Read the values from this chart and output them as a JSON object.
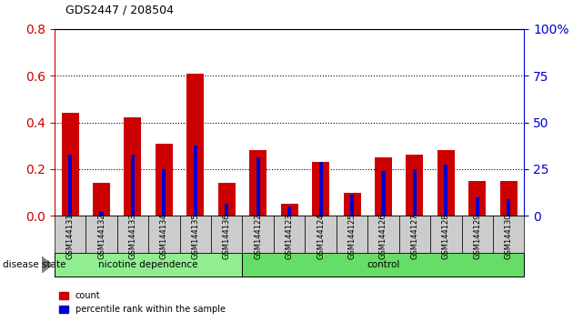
{
  "title": "GDS2447 / 208504",
  "categories": [
    "GSM144131",
    "GSM144132",
    "GSM144133",
    "GSM144134",
    "GSM144135",
    "GSM144136",
    "GSM144122",
    "GSM144123",
    "GSM144124",
    "GSM144125",
    "GSM144126",
    "GSM144127",
    "GSM144128",
    "GSM144129",
    "GSM144130"
  ],
  "count_values": [
    0.44,
    0.14,
    0.42,
    0.31,
    0.61,
    0.14,
    0.28,
    0.05,
    0.23,
    0.1,
    0.25,
    0.26,
    0.28,
    0.15,
    0.15
  ],
  "percentile_values": [
    0.26,
    0.02,
    0.26,
    0.2,
    0.3,
    0.05,
    0.25,
    0.04,
    0.23,
    0.09,
    0.19,
    0.2,
    0.22,
    0.08,
    0.07
  ],
  "count_color": "#cc0000",
  "percentile_color": "#0000cc",
  "ylim_left": [
    0,
    0.8
  ],
  "ylim_right": [
    0,
    100
  ],
  "yticks_left": [
    0,
    0.2,
    0.4,
    0.6,
    0.8
  ],
  "yticks_right": [
    0,
    25,
    50,
    75,
    100
  ],
  "group1_label": "nicotine dependence",
  "group2_label": "control",
  "group1_count": 6,
  "group2_count": 9,
  "group1_color": "#90ee90",
  "group2_color": "#66dd66",
  "disease_state_label": "disease state",
  "legend_count_label": "count",
  "legend_percentile_label": "percentile rank within the sample",
  "count_bar_width": 0.55,
  "pct_bar_width": 0.12,
  "bg_color": "#ffffff",
  "tick_label_bg": "#cccccc",
  "dotted_line_color": "#000000",
  "right_axis_color": "#0000cc",
  "left_axis_color": "#cc0000"
}
